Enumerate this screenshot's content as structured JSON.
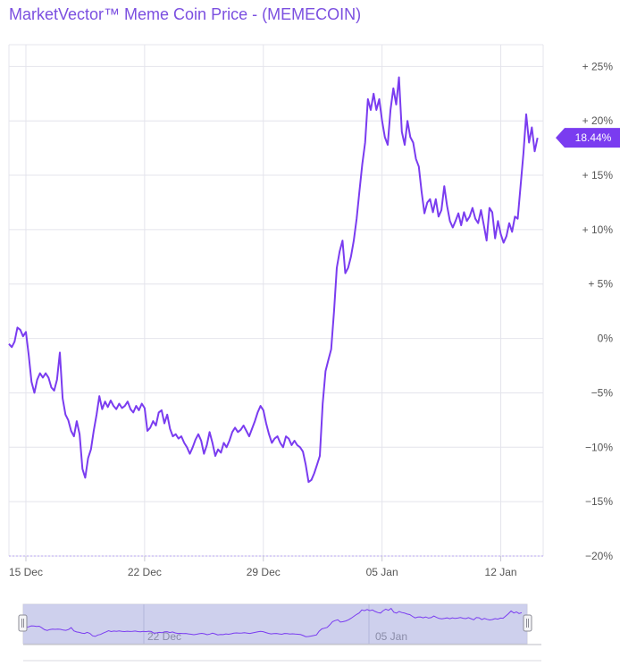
{
  "title": "MarketVector™ Meme Coin Price - (MEMECOIN)",
  "colors": {
    "line": "#7a3cf0",
    "grid": "#e4e4ec",
    "navigator_fill": "#c5c8ea",
    "badge": "#7a3cf0",
    "badge_text": "#ffffff"
  },
  "chart_data": {
    "type": "line",
    "y_unit": "%",
    "ylim": [
      -20,
      27
    ],
    "y_ticks": [
      {
        "value": 25,
        "label": "+ 25%"
      },
      {
        "value": 20,
        "label": "+ 20%"
      },
      {
        "value": 15,
        "label": "+ 15%"
      },
      {
        "value": 10,
        "label": "+ 10%"
      },
      {
        "value": 5,
        "label": "+ 5%"
      },
      {
        "value": 0,
        "label": "0%"
      },
      {
        "value": -5,
        "label": "−5%"
      },
      {
        "value": -10,
        "label": "−10%"
      },
      {
        "value": -15,
        "label": "−15%"
      },
      {
        "value": -20,
        "label": "−20%"
      }
    ],
    "x_range": [
      "2024-12-14",
      "2025-01-14"
    ],
    "x_ticks": [
      {
        "date": "2024-12-15",
        "label": "15 Dec"
      },
      {
        "date": "2024-12-22",
        "label": "22 Dec"
      },
      {
        "date": "2024-12-29",
        "label": "29 Dec"
      },
      {
        "date": "2025-01-05",
        "label": "05 Jan"
      },
      {
        "date": "2025-01-12",
        "label": "12 Jan"
      }
    ],
    "last_value_label": "18.44%",
    "last_value": 18.44,
    "navigator_labels": [
      "22 Dec",
      "05 Jan"
    ],
    "series": [
      {
        "points": [
          [
            "2024-12-14 00:00",
            -0.5
          ],
          [
            "2024-12-14 04:00",
            -0.8
          ],
          [
            "2024-12-14 08:00",
            -0.3
          ],
          [
            "2024-12-14 12:00",
            1.0
          ],
          [
            "2024-12-14 16:00",
            0.8
          ],
          [
            "2024-12-14 20:00",
            0.2
          ],
          [
            "2024-12-15 00:00",
            0.6
          ],
          [
            "2024-12-15 04:00",
            -1.5
          ],
          [
            "2024-12-15 08:00",
            -4.0
          ],
          [
            "2024-12-15 12:00",
            -5.0
          ],
          [
            "2024-12-15 16:00",
            -3.8
          ],
          [
            "2024-12-15 20:00",
            -3.2
          ],
          [
            "2024-12-16 00:00",
            -3.6
          ],
          [
            "2024-12-16 04:00",
            -3.2
          ],
          [
            "2024-12-16 08:00",
            -3.6
          ],
          [
            "2024-12-16 12:00",
            -4.5
          ],
          [
            "2024-12-16 16:00",
            -4.8
          ],
          [
            "2024-12-16 20:00",
            -3.8
          ],
          [
            "2024-12-17 00:00",
            -1.3
          ],
          [
            "2024-12-17 04:00",
            -5.5
          ],
          [
            "2024-12-17 08:00",
            -7.0
          ],
          [
            "2024-12-17 12:00",
            -7.5
          ],
          [
            "2024-12-17 16:00",
            -8.5
          ],
          [
            "2024-12-17 20:00",
            -9.0
          ],
          [
            "2024-12-18 00:00",
            -7.6
          ],
          [
            "2024-12-18 04:00",
            -8.8
          ],
          [
            "2024-12-18 08:00",
            -12.0
          ],
          [
            "2024-12-18 12:00",
            -12.8
          ],
          [
            "2024-12-18 16:00",
            -11.0
          ],
          [
            "2024-12-18 20:00",
            -10.2
          ],
          [
            "2024-12-19 00:00",
            -8.5
          ],
          [
            "2024-12-19 04:00",
            -7.0
          ],
          [
            "2024-12-19 08:00",
            -5.3
          ],
          [
            "2024-12-19 12:00",
            -6.5
          ],
          [
            "2024-12-19 16:00",
            -5.8
          ],
          [
            "2024-12-19 20:00",
            -6.3
          ],
          [
            "2024-12-20 00:00",
            -5.7
          ],
          [
            "2024-12-20 04:00",
            -6.2
          ],
          [
            "2024-12-20 08:00",
            -6.5
          ],
          [
            "2024-12-20 12:00",
            -6.0
          ],
          [
            "2024-12-20 16:00",
            -6.4
          ],
          [
            "2024-12-20 20:00",
            -6.2
          ],
          [
            "2024-12-21 00:00",
            -5.8
          ],
          [
            "2024-12-21 04:00",
            -6.5
          ],
          [
            "2024-12-21 08:00",
            -6.8
          ],
          [
            "2024-12-21 12:00",
            -6.2
          ],
          [
            "2024-12-21 16:00",
            -6.6
          ],
          [
            "2024-12-21 20:00",
            -6.0
          ],
          [
            "2024-12-22 00:00",
            -6.4
          ],
          [
            "2024-12-22 04:00",
            -8.5
          ],
          [
            "2024-12-22 08:00",
            -8.2
          ],
          [
            "2024-12-22 12:00",
            -7.6
          ],
          [
            "2024-12-22 16:00",
            -8.0
          ],
          [
            "2024-12-22 20:00",
            -6.8
          ],
          [
            "2024-12-23 00:00",
            -6.6
          ],
          [
            "2024-12-23 04:00",
            -7.8
          ],
          [
            "2024-12-23 08:00",
            -7.0
          ],
          [
            "2024-12-23 12:00",
            -8.3
          ],
          [
            "2024-12-23 16:00",
            -9.0
          ],
          [
            "2024-12-23 20:00",
            -8.8
          ],
          [
            "2024-12-24 00:00",
            -9.2
          ],
          [
            "2024-12-24 04:00",
            -9.0
          ],
          [
            "2024-12-24 08:00",
            -9.6
          ],
          [
            "2024-12-24 12:00",
            -10.0
          ],
          [
            "2024-12-24 16:00",
            -10.6
          ],
          [
            "2024-12-24 20:00",
            -10.0
          ],
          [
            "2024-12-25 00:00",
            -9.3
          ],
          [
            "2024-12-25 04:00",
            -8.8
          ],
          [
            "2024-12-25 08:00",
            -9.4
          ],
          [
            "2024-12-25 12:00",
            -10.6
          ],
          [
            "2024-12-25 16:00",
            -9.8
          ],
          [
            "2024-12-25 20:00",
            -8.6
          ],
          [
            "2024-12-26 00:00",
            -9.6
          ],
          [
            "2024-12-26 04:00",
            -10.8
          ],
          [
            "2024-12-26 08:00",
            -10.2
          ],
          [
            "2024-12-26 12:00",
            -10.5
          ],
          [
            "2024-12-26 16:00",
            -9.6
          ],
          [
            "2024-12-26 20:00",
            -10.0
          ],
          [
            "2024-12-27 00:00",
            -9.4
          ],
          [
            "2024-12-27 04:00",
            -8.6
          ],
          [
            "2024-12-27 08:00",
            -8.2
          ],
          [
            "2024-12-27 12:00",
            -8.6
          ],
          [
            "2024-12-27 16:00",
            -8.4
          ],
          [
            "2024-12-27 20:00",
            -8.0
          ],
          [
            "2024-12-28 00:00",
            -8.5
          ],
          [
            "2024-12-28 04:00",
            -9.0
          ],
          [
            "2024-12-28 08:00",
            -8.3
          ],
          [
            "2024-12-28 12:00",
            -7.6
          ],
          [
            "2024-12-28 16:00",
            -6.8
          ],
          [
            "2024-12-28 20:00",
            -6.2
          ],
          [
            "2024-12-29 00:00",
            -6.6
          ],
          [
            "2024-12-29 04:00",
            -7.8
          ],
          [
            "2024-12-29 08:00",
            -8.8
          ],
          [
            "2024-12-29 12:00",
            -9.6
          ],
          [
            "2024-12-29 16:00",
            -9.2
          ],
          [
            "2024-12-29 20:00",
            -9.0
          ],
          [
            "2024-12-30 00:00",
            -9.6
          ],
          [
            "2024-12-30 04:00",
            -10.0
          ],
          [
            "2024-12-30 08:00",
            -9.0
          ],
          [
            "2024-12-30 12:00",
            -9.2
          ],
          [
            "2024-12-30 16:00",
            -9.8
          ],
          [
            "2024-12-30 20:00",
            -9.4
          ],
          [
            "2024-12-31 00:00",
            -9.8
          ],
          [
            "2024-12-31 04:00",
            -10.0
          ],
          [
            "2024-12-31 08:00",
            -10.4
          ],
          [
            "2024-12-31 12:00",
            -11.6
          ],
          [
            "2024-12-31 16:00",
            -13.2
          ],
          [
            "2024-12-31 20:00",
            -13.0
          ],
          [
            "2025-01-01 00:00",
            -12.4
          ],
          [
            "2025-01-01 04:00",
            -11.6
          ],
          [
            "2025-01-01 08:00",
            -10.8
          ],
          [
            "2025-01-01 12:00",
            -6.0
          ],
          [
            "2025-01-01 16:00",
            -3.0
          ],
          [
            "2025-01-01 20:00",
            -2.0
          ],
          [
            "2025-01-02 00:00",
            -1.0
          ],
          [
            "2025-01-02 04:00",
            2.5
          ],
          [
            "2025-01-02 08:00",
            6.5
          ],
          [
            "2025-01-02 12:00",
            8.0
          ],
          [
            "2025-01-02 16:00",
            9.0
          ],
          [
            "2025-01-02 20:00",
            6.0
          ],
          [
            "2025-01-03 00:00",
            6.5
          ],
          [
            "2025-01-03 04:00",
            7.5
          ],
          [
            "2025-01-03 08:00",
            9.0
          ],
          [
            "2025-01-03 12:00",
            11.0
          ],
          [
            "2025-01-03 16:00",
            13.5
          ],
          [
            "2025-01-03 20:00",
            16.0
          ],
          [
            "2025-01-04 00:00",
            18.0
          ],
          [
            "2025-01-04 04:00",
            22.0
          ],
          [
            "2025-01-04 08:00",
            21.0
          ],
          [
            "2025-01-04 12:00",
            22.5
          ],
          [
            "2025-01-04 16:00",
            21.0
          ],
          [
            "2025-01-04 20:00",
            22.0
          ],
          [
            "2025-01-05 00:00",
            20.0
          ],
          [
            "2025-01-05 04:00",
            18.5
          ],
          [
            "2025-01-05 08:00",
            17.8
          ],
          [
            "2025-01-05 12:00",
            21.0
          ],
          [
            "2025-01-05 16:00",
            23.0
          ],
          [
            "2025-01-05 20:00",
            21.5
          ],
          [
            "2025-01-06 00:00",
            24.0
          ],
          [
            "2025-01-06 04:00",
            19.0
          ],
          [
            "2025-01-06 08:00",
            17.8
          ],
          [
            "2025-01-06 12:00",
            20.0
          ],
          [
            "2025-01-06 16:00",
            18.5
          ],
          [
            "2025-01-06 20:00",
            18.0
          ],
          [
            "2025-01-07 00:00",
            16.5
          ],
          [
            "2025-01-07 04:00",
            15.8
          ],
          [
            "2025-01-07 08:00",
            13.5
          ],
          [
            "2025-01-07 12:00",
            11.5
          ],
          [
            "2025-01-07 16:00",
            12.5
          ],
          [
            "2025-01-07 20:00",
            12.8
          ],
          [
            "2025-01-08 00:00",
            11.6
          ],
          [
            "2025-01-08 04:00",
            12.8
          ],
          [
            "2025-01-08 08:00",
            11.2
          ],
          [
            "2025-01-08 12:00",
            11.8
          ],
          [
            "2025-01-08 16:00",
            14.0
          ],
          [
            "2025-01-08 20:00",
            12.2
          ],
          [
            "2025-01-09 00:00",
            10.8
          ],
          [
            "2025-01-09 04:00",
            10.2
          ],
          [
            "2025-01-09 08:00",
            10.8
          ],
          [
            "2025-01-09 12:00",
            11.5
          ],
          [
            "2025-01-09 16:00",
            10.4
          ],
          [
            "2025-01-09 20:00",
            11.6
          ],
          [
            "2025-01-10 00:00",
            10.8
          ],
          [
            "2025-01-10 04:00",
            11.2
          ],
          [
            "2025-01-10 08:00",
            12.0
          ],
          [
            "2025-01-10 12:00",
            11.0
          ],
          [
            "2025-01-10 16:00",
            10.6
          ],
          [
            "2025-01-10 20:00",
            11.8
          ],
          [
            "2025-01-11 00:00",
            10.4
          ],
          [
            "2025-01-11 04:00",
            9.0
          ],
          [
            "2025-01-11 08:00",
            12.0
          ],
          [
            "2025-01-11 12:00",
            11.6
          ],
          [
            "2025-01-11 16:00",
            9.2
          ],
          [
            "2025-01-11 20:00",
            10.8
          ],
          [
            "2025-01-12 00:00",
            9.6
          ],
          [
            "2025-01-12 04:00",
            8.8
          ],
          [
            "2025-01-12 08:00",
            9.4
          ],
          [
            "2025-01-12 12:00",
            10.6
          ],
          [
            "2025-01-12 16:00",
            9.8
          ],
          [
            "2025-01-12 20:00",
            11.2
          ],
          [
            "2025-01-13 00:00",
            11.0
          ],
          [
            "2025-01-13 04:00",
            14.0
          ],
          [
            "2025-01-13 08:00",
            17.0
          ],
          [
            "2025-01-13 12:00",
            20.6
          ],
          [
            "2025-01-13 16:00",
            18.0
          ],
          [
            "2025-01-13 20:00",
            19.4
          ],
          [
            "2025-01-14 00:00",
            17.2
          ],
          [
            "2025-01-14 04:00",
            18.44
          ]
        ]
      }
    ]
  }
}
